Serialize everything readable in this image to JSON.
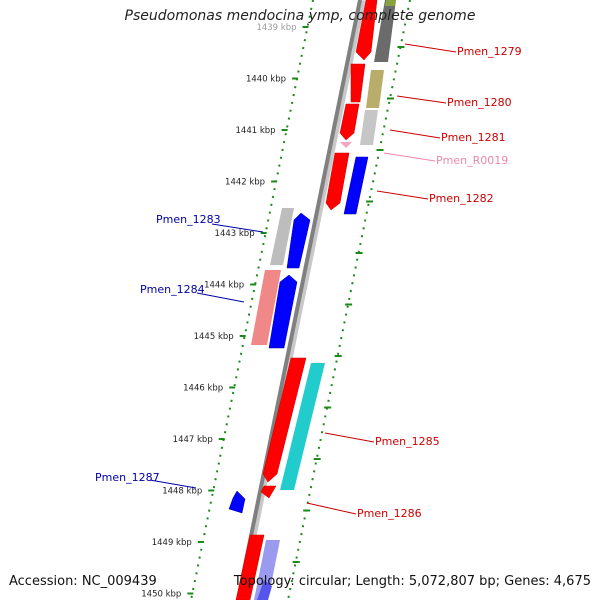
{
  "title": "Pseudomonas mendocina ymp, complete genome",
  "footer": {
    "accession": "Accession: NC_009439",
    "summary": "Topology: circular; Length: 5,072,807 bp; Genes: 4,675"
  },
  "colors": {
    "backbone": "#8a8a8a",
    "tick": "#1a8a1a",
    "forward_label": "#cc0000",
    "reverse_label": "#0000aa",
    "rna_label": "#ee88aa"
  },
  "ticks": [
    "1439 kbp",
    "1440 kbp",
    "1441 kbp",
    "1442 kbp",
    "1443 kbp",
    "1444 kbp",
    "1445 kbp",
    "1446 kbp",
    "1447 kbp",
    "1448 kbp",
    "1449 kbp",
    "1450 kbp"
  ],
  "forward_genes": [
    {
      "label": "Pmen_1279",
      "color": "#ff0000"
    },
    {
      "label": "Pmen_1280",
      "color": "#ff0000"
    },
    {
      "label": "Pmen_1281",
      "color": "#ff0000"
    },
    {
      "label": "Pmen_R0019",
      "color": "#f4a6c0"
    },
    {
      "label": "Pmen_1282",
      "color": "#ff0000"
    },
    {
      "label": "Pmen_1285",
      "color": "#ff0000"
    },
    {
      "label": "Pmen_1286",
      "color": "#ff0000"
    }
  ],
  "reverse_genes": [
    {
      "label": "Pmen_1283",
      "color": "#0000ff"
    },
    {
      "label": "Pmen_1284",
      "color": "#0000ff"
    },
    {
      "label": "Pmen_1287",
      "color": "#0000ff"
    }
  ]
}
